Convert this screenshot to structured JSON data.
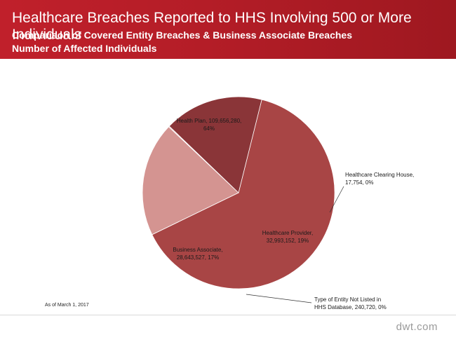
{
  "header": {
    "title": "Healthcare Breaches Reported to HHS Involving 500 or More Individuals",
    "subtitle": "Comparison  of Covered Entity Breaches & Business Associate Breaches",
    "subtitle2": "Number  of Affected Individuals"
  },
  "footer": {
    "as_of": "As of March 1, 2017",
    "brand": "dwt.com"
  },
  "colors": {
    "banner": "#b41d27",
    "health_plan": "#a84545",
    "healthcare_provider": "#d49491",
    "business_associate": "#8a3538",
    "slice_border": "#ffffff"
  },
  "chart_data": {
    "type": "pie",
    "title": "",
    "slices": [
      {
        "name": "Health Plan",
        "value": 109656280,
        "percent": "64%",
        "label_lines": [
          "Health Plan, 109,656,280,",
          "64%"
        ],
        "color": "#a84545"
      },
      {
        "name": "Healthcare Clearing House",
        "value": 17754,
        "percent": "0%",
        "label_lines": [
          "Healthcare Clearing House,",
          "17,754, 0%"
        ],
        "color": "#c06060"
      },
      {
        "name": "Healthcare Provider",
        "value": 32993152,
        "percent": "19%",
        "label_lines": [
          "Healthcare Provider,",
          "32,993,152, 19%"
        ],
        "color": "#d49491"
      },
      {
        "name": "Type of Entity Not Listed in HHS Database",
        "value": 240720,
        "percent": "0%",
        "label_lines": [
          "Type of Entity Not Listed in",
          "HHS Database, 240,720, 0%"
        ],
        "color": "#e2b5b3"
      },
      {
        "name": "Business Associate",
        "value": 28643527,
        "percent": "17%",
        "label_lines": [
          "Business Associate,",
          "28,643,527, 17%"
        ],
        "color": "#8a3538"
      }
    ]
  }
}
